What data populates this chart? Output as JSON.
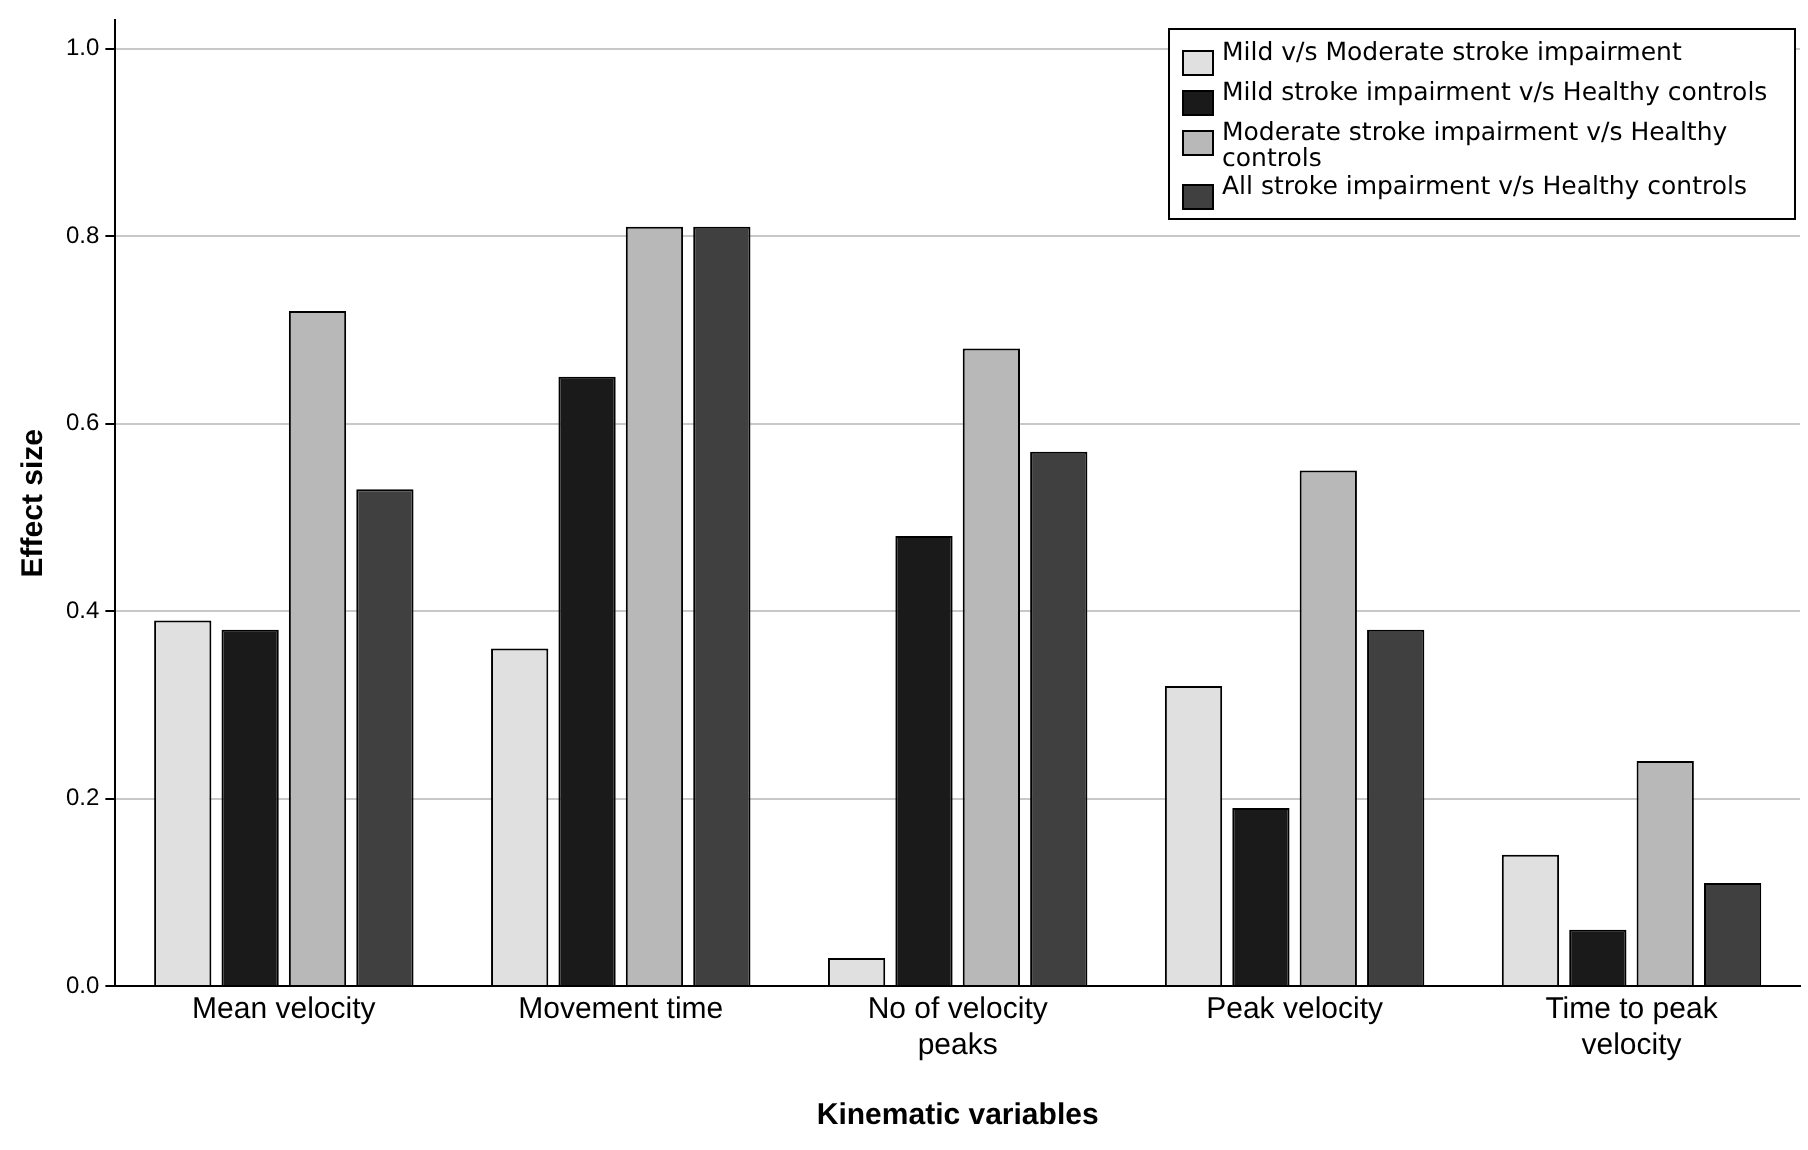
{
  "chart_data": {
    "type": "bar",
    "xlabel": "Kinematic variables",
    "ylabel": "Effect size",
    "categories": [
      "Mean velocity",
      "Movement time",
      "No of velocity peaks",
      "Peak velocity",
      "Time to peak velocity"
    ],
    "series": [
      {
        "name": "Mild v/s Moderate stroke impairment",
        "color": "#e0e0e0",
        "values": [
          0.39,
          0.36,
          0.03,
          0.32,
          0.14
        ]
      },
      {
        "name": "Mild stroke impairment v/s Healthy controls",
        "color": "#1a1a1a",
        "values": [
          0.38,
          0.65,
          0.48,
          0.19,
          0.06
        ]
      },
      {
        "name": "Moderate stroke impairment v/s Healthy controls",
        "color": "#b8b8b8",
        "values": [
          0.72,
          0.81,
          0.68,
          0.55,
          0.24
        ]
      },
      {
        "name": "All stroke impairment v/s Healthy controls",
        "color": "#404040",
        "values": [
          0.53,
          0.81,
          0.57,
          0.38,
          0.11
        ]
      }
    ],
    "ylim": [
      0,
      1.03
    ],
    "yticks": [
      {
        "value": 0,
        "label": "0.0"
      },
      {
        "value": 0.2,
        "label": "0.2"
      },
      {
        "value": 0.4,
        "label": "0.4"
      },
      {
        "value": 0.6,
        "label": "0.6"
      },
      {
        "value": 0.8,
        "label": "0.8"
      },
      {
        "value": 1,
        "label": "1.0"
      }
    ],
    "grid": "y",
    "legend": "top right"
  }
}
